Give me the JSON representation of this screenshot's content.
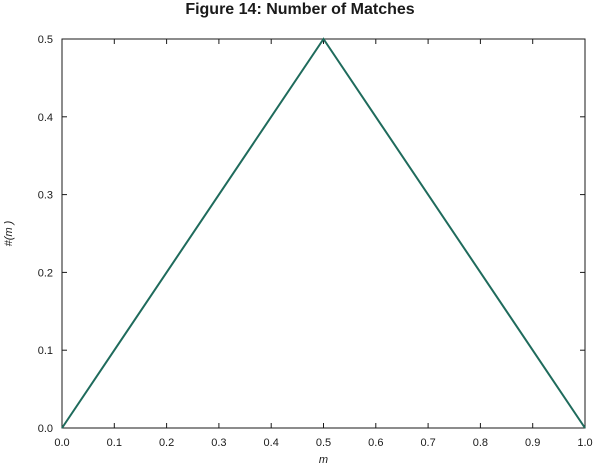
{
  "chart_data": {
    "type": "line",
    "title": "Figure 14: Number of Matches",
    "xlabel": "m",
    "ylabel": "#(m )",
    "xlim": [
      0.0,
      1.0
    ],
    "ylim": [
      0.0,
      0.5
    ],
    "x_ticks": [
      "0.0",
      "0.1",
      "0.2",
      "0.3",
      "0.4",
      "0.5",
      "0.6",
      "0.7",
      "0.8",
      "0.9",
      "1.0"
    ],
    "y_ticks": [
      "0.0",
      "0.1",
      "0.2",
      "0.3",
      "0.4",
      "0.5"
    ],
    "grid": false,
    "series": [
      {
        "color": "#1f6b5c",
        "x": [
          0.0,
          0.5,
          1.0
        ],
        "y": [
          0.0,
          0.5,
          0.0
        ]
      }
    ]
  }
}
